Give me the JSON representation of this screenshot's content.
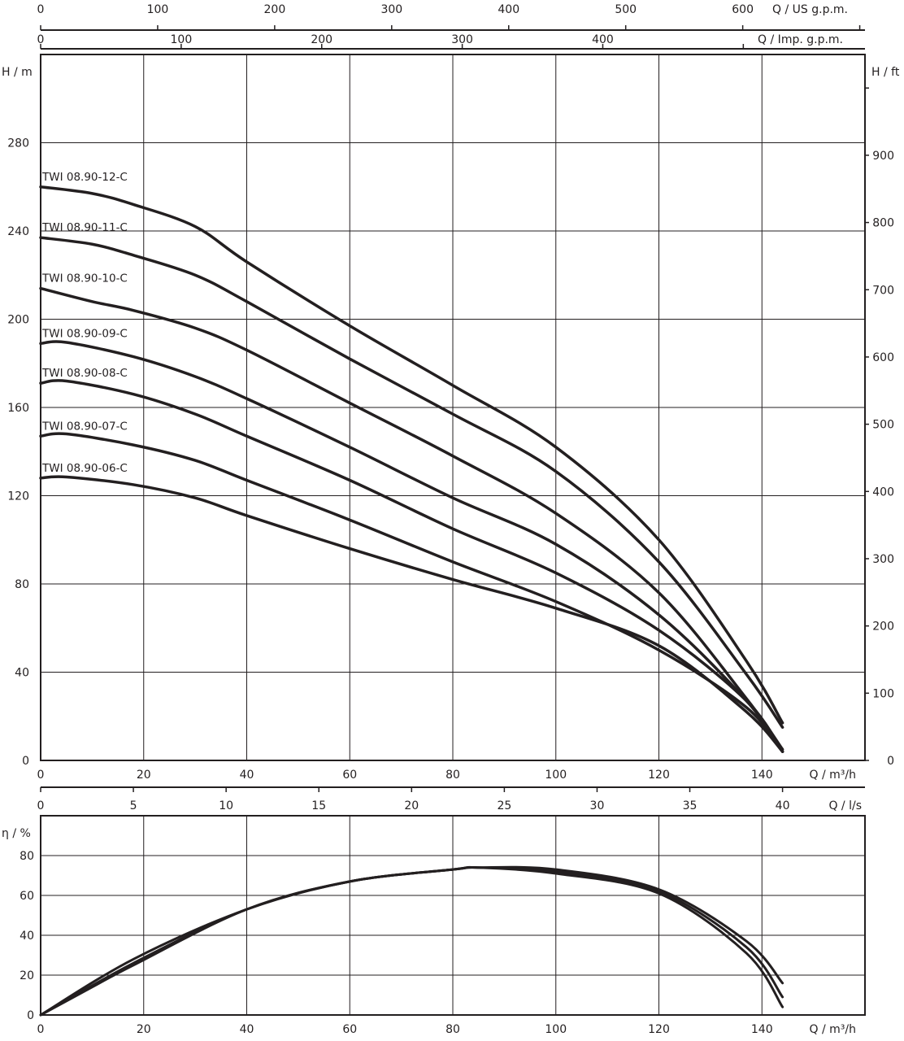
{
  "chart_data": [
    {
      "type": "line",
      "xlabel": "Q / m³/h",
      "ylabel": "H / m",
      "ylabel_right": "H / ft",
      "xlim": [
        0,
        160
      ],
      "ylim": [
        0,
        320
      ],
      "x_ticks": [
        0,
        20,
        40,
        60,
        80,
        100,
        120,
        140
      ],
      "y_ticks": [
        0,
        40,
        80,
        120,
        160,
        200,
        240,
        280
      ],
      "y_right_ticks": [
        0,
        100,
        200,
        300,
        400,
        500,
        600,
        700,
        800,
        900
      ],
      "top_axes": [
        {
          "label": "Q / US g.p.m.",
          "ticks": [
            0,
            100,
            200,
            300,
            400,
            500,
            600
          ],
          "m3h_per_unit": 0.22712
        },
        {
          "label": "Q / Imp. g.p.m.",
          "ticks": [
            0,
            100,
            200,
            300,
            400
          ],
          "m3h_per_unit": 0.27277
        }
      ],
      "grid": true,
      "series": [
        {
          "name": "TWI 08.90-12-C",
          "x": [
            0,
            10,
            18,
            30,
            40,
            60,
            80,
            100,
            120,
            137,
            144
          ],
          "y": [
            260,
            257,
            252,
            242,
            226,
            197,
            170,
            142,
            100,
            45,
            17
          ]
        },
        {
          "name": "TWI 08.90-11-C",
          "x": [
            0,
            10,
            18,
            30,
            40,
            60,
            80,
            100,
            120,
            137,
            144
          ],
          "y": [
            237,
            234,
            229,
            220,
            208,
            182,
            157,
            131,
            90,
            39,
            15
          ]
        },
        {
          "name": "TWI 08.90-10-C",
          "x": [
            0,
            10,
            18,
            30,
            40,
            60,
            80,
            100,
            120,
            137,
            144
          ],
          "y": [
            214,
            208,
            204,
            196,
            186,
            162,
            138,
            112,
            76,
            28,
            5
          ]
        },
        {
          "name": "TWI 08.90-09-C",
          "x": [
            0,
            5,
            18,
            30,
            40,
            60,
            80,
            100,
            120,
            137,
            144
          ],
          "y": [
            189,
            189.5,
            183,
            174,
            164,
            142,
            119,
            98,
            66,
            27,
            4
          ]
        },
        {
          "name": "TWI 08.90-08-C",
          "x": [
            0,
            5,
            18,
            30,
            40,
            60,
            80,
            100,
            120,
            137,
            144
          ],
          "y": [
            171,
            172,
            166,
            157,
            147,
            127,
            105,
            85,
            59,
            27,
            4
          ]
        },
        {
          "name": "TWI 08.90-07-C",
          "x": [
            0,
            5,
            18,
            30,
            40,
            60,
            80,
            100,
            120,
            137,
            144
          ],
          "y": [
            147,
            148,
            143,
            136,
            127,
            109,
            90,
            72,
            50,
            24,
            4
          ]
        },
        {
          "name": "TWI 08.90-06-C",
          "x": [
            0,
            5,
            18,
            30,
            40,
            60,
            80,
            100,
            120,
            137,
            144
          ],
          "y": [
            128,
            128.5,
            125,
            119,
            111,
            96,
            82,
            69,
            52,
            22,
            4
          ]
        }
      ]
    },
    {
      "type": "line",
      "xlabel": "Q / m³/h",
      "ylabel": "η / %",
      "xlim": [
        0,
        160
      ],
      "ylim": [
        0,
        100
      ],
      "x_ticks": [
        0,
        20,
        40,
        60,
        80,
        100,
        120,
        140
      ],
      "y_ticks": [
        0,
        20,
        40,
        60,
        80
      ],
      "top_axis": {
        "label": "Q / l/s",
        "ticks": [
          0,
          5,
          10,
          15,
          20,
          25,
          30,
          35,
          40
        ],
        "m3h_per_unit": 3.6
      },
      "grid": true,
      "series": [
        {
          "x": [
            0,
            18,
            40,
            60,
            80,
            85,
            100,
            120,
            137,
            144
          ],
          "y": [
            0,
            28,
            53,
            67,
            73,
            74,
            73,
            63,
            37,
            16
          ]
        },
        {
          "x": [
            0,
            18,
            40,
            60,
            80,
            85,
            100,
            120,
            137,
            144
          ],
          "y": [
            0,
            26,
            53,
            67,
            73,
            74,
            72,
            62,
            34,
            9
          ]
        },
        {
          "x": [
            0,
            10,
            18,
            40,
            60,
            80,
            85,
            100,
            120,
            137,
            144
          ],
          "y": [
            0,
            14,
            25,
            53,
            67,
            73,
            74,
            71,
            61,
            31,
            4
          ]
        }
      ]
    }
  ]
}
